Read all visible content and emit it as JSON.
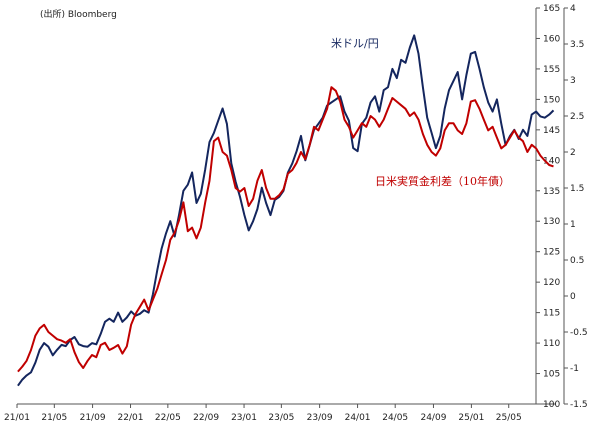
{
  "source_note": "(出所) Bloomberg",
  "chart_data": {
    "type": "line",
    "x_tick_labels": [
      "21/01",
      "21/05",
      "21/09",
      "22/01",
      "22/05",
      "22/09",
      "23/01",
      "23/05",
      "23/09",
      "24/01",
      "24/05",
      "24/09",
      "25/01",
      "25/05"
    ],
    "x_range": [
      "2021-01",
      "2025-09"
    ],
    "left_axis": {
      "ticks": [
        100,
        105,
        110,
        115,
        120,
        125,
        130,
        135,
        140,
        145,
        150,
        155,
        160,
        165
      ],
      "ylim": [
        100,
        165
      ]
    },
    "right_axis": {
      "ticks": [
        -1.5,
        -1,
        -0.5,
        0,
        0.5,
        1,
        1.5,
        2,
        2.5,
        3,
        3.5,
        4
      ],
      "tick_labels": [
        "-1.5",
        "-1",
        "-0.5",
        "0",
        "0.5",
        "1",
        "1.5",
        "2",
        "2.5",
        "3",
        "3.5",
        "4"
      ],
      "ylim": [
        -1.5,
        4
      ]
    },
    "grid": false,
    "series": [
      {
        "name": "米ドル/円",
        "axis": "left",
        "color": "#14265e",
        "points": [
          [
            "2021-01-04",
            103
          ],
          [
            "2021-01-18",
            104
          ],
          [
            "2021-02-01",
            104.7
          ],
          [
            "2021-02-15",
            105.2
          ],
          [
            "2021-03-01",
            106.8
          ],
          [
            "2021-03-15",
            108.9
          ],
          [
            "2021-03-29",
            110
          ],
          [
            "2021-04-12",
            109.4
          ],
          [
            "2021-04-26",
            108
          ],
          [
            "2021-05-10",
            108.9
          ],
          [
            "2021-05-24",
            109.7
          ],
          [
            "2021-06-07",
            109.5
          ],
          [
            "2021-06-21",
            110.5
          ],
          [
            "2021-07-05",
            111
          ],
          [
            "2021-07-19",
            109.8
          ],
          [
            "2021-08-02",
            109.5
          ],
          [
            "2021-08-16",
            109.4
          ],
          [
            "2021-08-30",
            110
          ],
          [
            "2021-09-13",
            109.8
          ],
          [
            "2021-09-27",
            111.5
          ],
          [
            "2021-10-11",
            113.5
          ],
          [
            "2021-10-25",
            114
          ],
          [
            "2021-11-08",
            113.5
          ],
          [
            "2021-11-22",
            115
          ],
          [
            "2021-12-06",
            113.5
          ],
          [
            "2021-12-20",
            114.2
          ],
          [
            "2022-01-03",
            115.2
          ],
          [
            "2022-01-17",
            114.5
          ],
          [
            "2022-01-31",
            114.8
          ],
          [
            "2022-02-14",
            115.4
          ],
          [
            "2022-02-28",
            115
          ],
          [
            "2022-03-14",
            118
          ],
          [
            "2022-03-28",
            122
          ],
          [
            "2022-04-11",
            125.5
          ],
          [
            "2022-04-25",
            128
          ],
          [
            "2022-05-09",
            130
          ],
          [
            "2022-05-23",
            127.5
          ],
          [
            "2022-06-06",
            131
          ],
          [
            "2022-06-20",
            135
          ],
          [
            "2022-07-04",
            136
          ],
          [
            "2022-07-18",
            138
          ],
          [
            "2022-08-01",
            133
          ],
          [
            "2022-08-15",
            134.5
          ],
          [
            "2022-08-29",
            138.5
          ],
          [
            "2022-09-12",
            143
          ],
          [
            "2022-09-26",
            144.5
          ],
          [
            "2022-10-10",
            146.5
          ],
          [
            "2022-10-24",
            148.5
          ],
          [
            "2022-11-07",
            146
          ],
          [
            "2022-11-21",
            139.5
          ],
          [
            "2022-12-05",
            136.5
          ],
          [
            "2022-12-19",
            134
          ],
          [
            "2023-01-02",
            131
          ],
          [
            "2023-01-16",
            128.5
          ],
          [
            "2023-01-30",
            130
          ],
          [
            "2023-02-13",
            132
          ],
          [
            "2023-02-27",
            135.5
          ],
          [
            "2023-03-13",
            133
          ],
          [
            "2023-03-27",
            131
          ],
          [
            "2023-04-10",
            133.5
          ],
          [
            "2023-04-24",
            134
          ],
          [
            "2023-05-08",
            135
          ],
          [
            "2023-05-22",
            138
          ],
          [
            "2023-06-05",
            139.5
          ],
          [
            "2023-06-19",
            141.5
          ],
          [
            "2023-07-03",
            144
          ],
          [
            "2023-07-17",
            140
          ],
          [
            "2023-07-31",
            142.5
          ],
          [
            "2023-08-14",
            145
          ],
          [
            "2023-08-28",
            146
          ],
          [
            "2023-09-11",
            147
          ],
          [
            "2023-09-25",
            149
          ],
          [
            "2023-10-09",
            149.5
          ],
          [
            "2023-10-23",
            150
          ],
          [
            "2023-11-06",
            150.5
          ],
          [
            "2023-11-20",
            148
          ],
          [
            "2023-12-04",
            146.5
          ],
          [
            "2023-12-18",
            142
          ],
          [
            "2024-01-01",
            141.5
          ],
          [
            "2024-01-15",
            146
          ],
          [
            "2024-01-29",
            147
          ],
          [
            "2024-02-12",
            149.5
          ],
          [
            "2024-02-26",
            150.5
          ],
          [
            "2024-03-11",
            148
          ],
          [
            "2024-03-25",
            151.5
          ],
          [
            "2024-04-08",
            152
          ],
          [
            "2024-04-22",
            155
          ],
          [
            "2024-05-06",
            153.5
          ],
          [
            "2024-05-20",
            156.5
          ],
          [
            "2024-06-03",
            156
          ],
          [
            "2024-06-17",
            158.5
          ],
          [
            "2024-07-01",
            160.5
          ],
          [
            "2024-07-15",
            157.5
          ],
          [
            "2024-07-29",
            152
          ],
          [
            "2024-08-12",
            147
          ],
          [
            "2024-08-26",
            144.5
          ],
          [
            "2024-09-09",
            142
          ],
          [
            "2024-09-23",
            144
          ],
          [
            "2024-10-07",
            148.5
          ],
          [
            "2024-10-21",
            151.5
          ],
          [
            "2024-11-04",
            153
          ],
          [
            "2024-11-18",
            154.5
          ],
          [
            "2024-12-02",
            150
          ],
          [
            "2024-12-16",
            154
          ],
          [
            "2024-12-30",
            157.5
          ],
          [
            "2025-01-13",
            157.8
          ],
          [
            "2025-01-27",
            155
          ],
          [
            "2025-02-10",
            152
          ],
          [
            "2025-02-24",
            149.5
          ],
          [
            "2025-03-10",
            148
          ],
          [
            "2025-03-24",
            150
          ],
          [
            "2025-04-07",
            146
          ],
          [
            "2025-04-21",
            142.5
          ],
          [
            "2025-05-05",
            144
          ],
          [
            "2025-05-19",
            145
          ],
          [
            "2025-06-02",
            143.5
          ],
          [
            "2025-06-16",
            145
          ],
          [
            "2025-06-30",
            144
          ],
          [
            "2025-07-14",
            147.5
          ],
          [
            "2025-07-28",
            148
          ],
          [
            "2025-08-11",
            147.2
          ],
          [
            "2025-08-25",
            147
          ],
          [
            "2025-09-08",
            147.5
          ],
          [
            "2025-09-22",
            148.2
          ]
        ]
      },
      {
        "name": "日米実質金利差（10年債）",
        "axis": "right",
        "color": "#c00000",
        "points": [
          [
            "2021-01-04",
            -1.05
          ],
          [
            "2021-01-18",
            -0.98
          ],
          [
            "2021-02-01",
            -0.9
          ],
          [
            "2021-02-15",
            -0.75
          ],
          [
            "2021-03-01",
            -0.55
          ],
          [
            "2021-03-15",
            -0.45
          ],
          [
            "2021-03-29",
            -0.4
          ],
          [
            "2021-04-12",
            -0.5
          ],
          [
            "2021-04-26",
            -0.55
          ],
          [
            "2021-05-10",
            -0.6
          ],
          [
            "2021-05-24",
            -0.62
          ],
          [
            "2021-06-07",
            -0.65
          ],
          [
            "2021-06-21",
            -0.6
          ],
          [
            "2021-07-05",
            -0.78
          ],
          [
            "2021-07-19",
            -0.92
          ],
          [
            "2021-08-02",
            -1.0
          ],
          [
            "2021-08-16",
            -0.9
          ],
          [
            "2021-08-30",
            -0.82
          ],
          [
            "2021-09-13",
            -0.85
          ],
          [
            "2021-09-27",
            -0.68
          ],
          [
            "2021-10-11",
            -0.65
          ],
          [
            "2021-10-25",
            -0.75
          ],
          [
            "2021-11-08",
            -0.72
          ],
          [
            "2021-11-22",
            -0.68
          ],
          [
            "2021-12-06",
            -0.8
          ],
          [
            "2021-12-20",
            -0.7
          ],
          [
            "2022-01-03",
            -0.4
          ],
          [
            "2022-01-17",
            -0.25
          ],
          [
            "2022-01-31",
            -0.15
          ],
          [
            "2022-02-14",
            -0.05
          ],
          [
            "2022-02-28",
            -0.2
          ],
          [
            "2022-03-14",
            -0.05
          ],
          [
            "2022-03-28",
            0.1
          ],
          [
            "2022-04-11",
            0.3
          ],
          [
            "2022-04-25",
            0.5
          ],
          [
            "2022-05-09",
            0.78
          ],
          [
            "2022-05-23",
            0.88
          ],
          [
            "2022-06-06",
            1.05
          ],
          [
            "2022-06-20",
            1.3
          ],
          [
            "2022-07-04",
            0.9
          ],
          [
            "2022-07-18",
            0.95
          ],
          [
            "2022-08-01",
            0.8
          ],
          [
            "2022-08-15",
            0.95
          ],
          [
            "2022-08-29",
            1.3
          ],
          [
            "2022-09-12",
            1.6
          ],
          [
            "2022-09-26",
            2.15
          ],
          [
            "2022-10-10",
            2.2
          ],
          [
            "2022-10-24",
            2.0
          ],
          [
            "2022-11-07",
            1.95
          ],
          [
            "2022-11-21",
            1.75
          ],
          [
            "2022-12-05",
            1.5
          ],
          [
            "2022-12-19",
            1.45
          ],
          [
            "2023-01-02",
            1.5
          ],
          [
            "2023-01-16",
            1.25
          ],
          [
            "2023-01-30",
            1.35
          ],
          [
            "2023-02-13",
            1.6
          ],
          [
            "2023-02-27",
            1.75
          ],
          [
            "2023-03-13",
            1.5
          ],
          [
            "2023-03-27",
            1.35
          ],
          [
            "2023-04-10",
            1.35
          ],
          [
            "2023-04-24",
            1.4
          ],
          [
            "2023-05-08",
            1.48
          ],
          [
            "2023-05-22",
            1.7
          ],
          [
            "2023-06-05",
            1.75
          ],
          [
            "2023-06-19",
            1.85
          ],
          [
            "2023-07-03",
            2.0
          ],
          [
            "2023-07-17",
            1.9
          ],
          [
            "2023-07-31",
            2.1
          ],
          [
            "2023-08-14",
            2.35
          ],
          [
            "2023-08-28",
            2.3
          ],
          [
            "2023-09-11",
            2.45
          ],
          [
            "2023-09-25",
            2.6
          ],
          [
            "2023-10-09",
            2.9
          ],
          [
            "2023-10-23",
            2.85
          ],
          [
            "2023-11-06",
            2.7
          ],
          [
            "2023-11-20",
            2.45
          ],
          [
            "2023-12-04",
            2.35
          ],
          [
            "2023-12-18",
            2.2
          ],
          [
            "2024-01-01",
            2.3
          ],
          [
            "2024-01-15",
            2.4
          ],
          [
            "2024-01-29",
            2.35
          ],
          [
            "2024-02-12",
            2.5
          ],
          [
            "2024-02-26",
            2.45
          ],
          [
            "2024-03-11",
            2.35
          ],
          [
            "2024-03-25",
            2.45
          ],
          [
            "2024-04-08",
            2.6
          ],
          [
            "2024-04-22",
            2.75
          ],
          [
            "2024-05-06",
            2.7
          ],
          [
            "2024-05-20",
            2.65
          ],
          [
            "2024-06-03",
            2.6
          ],
          [
            "2024-06-17",
            2.5
          ],
          [
            "2024-07-01",
            2.55
          ],
          [
            "2024-07-15",
            2.45
          ],
          [
            "2024-07-29",
            2.25
          ],
          [
            "2024-08-12",
            2.1
          ],
          [
            "2024-08-26",
            2.0
          ],
          [
            "2024-09-09",
            1.95
          ],
          [
            "2024-09-23",
            2.05
          ],
          [
            "2024-10-07",
            2.3
          ],
          [
            "2024-10-21",
            2.4
          ],
          [
            "2024-11-04",
            2.4
          ],
          [
            "2024-11-18",
            2.3
          ],
          [
            "2024-12-02",
            2.25
          ],
          [
            "2024-12-16",
            2.4
          ],
          [
            "2024-12-30",
            2.7
          ],
          [
            "2025-01-13",
            2.72
          ],
          [
            "2025-01-27",
            2.6
          ],
          [
            "2025-02-10",
            2.45
          ],
          [
            "2025-02-24",
            2.3
          ],
          [
            "2025-03-10",
            2.35
          ],
          [
            "2025-03-24",
            2.2
          ],
          [
            "2025-04-07",
            2.05
          ],
          [
            "2025-04-21",
            2.1
          ],
          [
            "2025-05-05",
            2.2
          ],
          [
            "2025-05-19",
            2.3
          ],
          [
            "2025-06-02",
            2.2
          ],
          [
            "2025-06-16",
            2.15
          ],
          [
            "2025-06-30",
            2.0
          ],
          [
            "2025-07-14",
            2.1
          ],
          [
            "2025-07-28",
            2.05
          ],
          [
            "2025-08-11",
            1.95
          ],
          [
            "2025-08-25",
            1.88
          ],
          [
            "2025-09-08",
            1.82
          ],
          [
            "2025-09-22",
            1.8
          ]
        ]
      }
    ]
  }
}
